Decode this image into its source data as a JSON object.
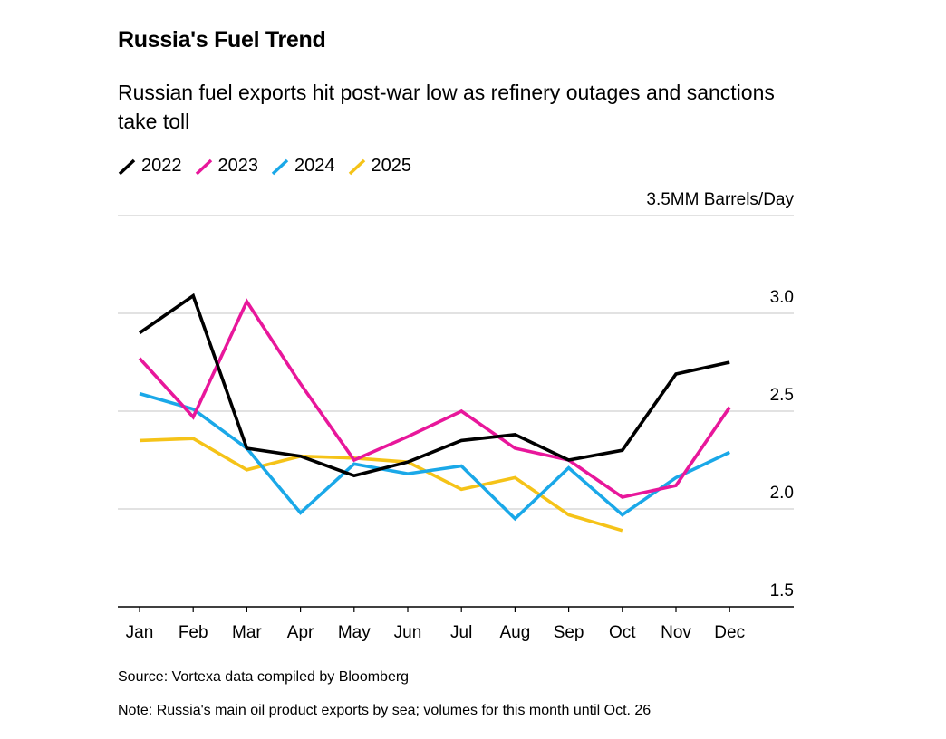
{
  "title": "Russia's Fuel Trend",
  "subtitle": "Russian fuel exports hit post-war low as refinery outages and sanctions take toll",
  "source": "Source: Vortexa data compiled by Bloomberg",
  "note": "Note: Russia's main oil product exports by sea; volumes for this month until Oct. 26",
  "chart_data": {
    "type": "line",
    "title": "Russia's Fuel Trend",
    "subtitle": "Russian fuel exports hit post-war low as refinery outages and sanctions take toll",
    "unit_label": "3.5MM Barrels/Day",
    "categories": [
      "Jan",
      "Feb",
      "Mar",
      "Apr",
      "May",
      "Jun",
      "Jul",
      "Aug",
      "Sep",
      "Oct",
      "Nov",
      "Dec"
    ],
    "yticks": [
      "3.0",
      "2.5",
      "2.0",
      "1.5"
    ],
    "ytick_values": [
      3.0,
      2.5,
      2.0,
      1.5
    ],
    "ylim": [
      1.5,
      3.5
    ],
    "grid": true,
    "legend_position": "top-left",
    "series": [
      {
        "name": "2022",
        "color": "#000000",
        "values": [
          2.9,
          3.09,
          2.31,
          2.27,
          2.17,
          2.24,
          2.35,
          2.38,
          2.25,
          2.3,
          2.69,
          2.75
        ]
      },
      {
        "name": "2023",
        "color": "#e8179b",
        "values": [
          2.77,
          2.47,
          3.06,
          2.64,
          2.25,
          2.37,
          2.5,
          2.31,
          2.25,
          2.06,
          2.12,
          2.52
        ]
      },
      {
        "name": "2024",
        "color": "#1aa8e8",
        "values": [
          2.59,
          2.51,
          2.31,
          1.98,
          2.23,
          2.18,
          2.22,
          1.95,
          2.21,
          1.97,
          2.16,
          2.29
        ]
      },
      {
        "name": "2025",
        "color": "#f5c318",
        "values": [
          2.35,
          2.36,
          2.2,
          2.27,
          2.26,
          2.24,
          2.1,
          2.16,
          1.97,
          1.89,
          null,
          null
        ]
      }
    ]
  }
}
